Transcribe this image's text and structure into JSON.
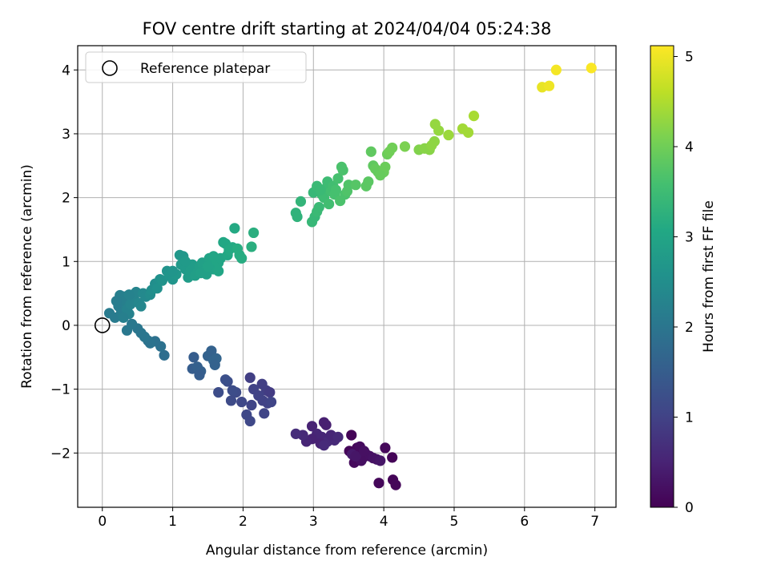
{
  "chart_data": {
    "type": "scatter",
    "title": "FOV centre drift starting at 2024/04/04 05:24:38",
    "xlabel": "Angular distance from reference (arcmin)",
    "ylabel": "Rotation from reference (arcmin)",
    "xlim": [
      -0.35,
      7.3
    ],
    "ylim": [
      -2.85,
      4.38
    ],
    "xticks": [
      0,
      1,
      2,
      3,
      4,
      5,
      6,
      7
    ],
    "yticks": [
      -2,
      -1,
      0,
      1,
      2,
      3,
      4
    ],
    "grid": true,
    "legend": {
      "position": "top-left",
      "label": "Reference platepar"
    },
    "reference_point": {
      "x": 0,
      "y": 0
    },
    "colorbar": {
      "label": "Hours from first FF file",
      "colormap": "viridis",
      "range": [
        0,
        5.12
      ],
      "ticks": [
        0,
        1,
        2,
        3,
        4,
        5
      ]
    },
    "points": [
      {
        "x": 3.54,
        "y": -1.72,
        "c": 0.05
      },
      {
        "x": 3.51,
        "y": -1.97,
        "c": 0.08
      },
      {
        "x": 3.62,
        "y": -1.92,
        "c": 0.1
      },
      {
        "x": 3.58,
        "y": -2.15,
        "c": 0.12
      },
      {
        "x": 3.66,
        "y": -1.9,
        "c": 0.15
      },
      {
        "x": 3.7,
        "y": -2.08,
        "c": 0.18
      },
      {
        "x": 3.75,
        "y": -2.02,
        "c": 0.2
      },
      {
        "x": 3.8,
        "y": -2.05,
        "c": 0.22
      },
      {
        "x": 3.85,
        "y": -2.08,
        "c": 0.25
      },
      {
        "x": 3.9,
        "y": -2.1,
        "c": 0.27
      },
      {
        "x": 3.95,
        "y": -2.12,
        "c": 0.3
      },
      {
        "x": 4.02,
        "y": -1.92,
        "c": 0.1
      },
      {
        "x": 4.12,
        "y": -2.07,
        "c": 0.05
      },
      {
        "x": 4.13,
        "y": -2.42,
        "c": 0.05
      },
      {
        "x": 4.17,
        "y": -2.5,
        "c": 0.07
      },
      {
        "x": 3.93,
        "y": -2.47,
        "c": 0.1
      },
      {
        "x": 3.68,
        "y": -2.12,
        "c": 0.2
      },
      {
        "x": 3.55,
        "y": -2.02,
        "c": 0.35
      },
      {
        "x": 3.6,
        "y": -2.05,
        "c": 0.3
      },
      {
        "x": 3.72,
        "y": -1.97,
        "c": 0.22
      },
      {
        "x": 3.15,
        "y": -1.52,
        "c": 0.45
      },
      {
        "x": 3.18,
        "y": -1.56,
        "c": 0.45
      },
      {
        "x": 2.98,
        "y": -1.58,
        "c": 0.5
      },
      {
        "x": 3.05,
        "y": -1.7,
        "c": 0.55
      },
      {
        "x": 3.12,
        "y": -1.75,
        "c": 0.55
      },
      {
        "x": 3.2,
        "y": -1.82,
        "c": 0.6
      },
      {
        "x": 3.3,
        "y": -1.8,
        "c": 0.6
      },
      {
        "x": 3.25,
        "y": -1.72,
        "c": 0.55
      },
      {
        "x": 3.1,
        "y": -1.85,
        "c": 0.5
      },
      {
        "x": 2.98,
        "y": -1.78,
        "c": 0.5
      },
      {
        "x": 2.9,
        "y": -1.82,
        "c": 0.55
      },
      {
        "x": 2.85,
        "y": -1.72,
        "c": 0.6
      },
      {
        "x": 2.75,
        "y": -1.7,
        "c": 0.65
      },
      {
        "x": 3.15,
        "y": -1.88,
        "c": 0.62
      },
      {
        "x": 3.35,
        "y": -1.75,
        "c": 0.6
      },
      {
        "x": 2.1,
        "y": -0.82,
        "c": 0.95
      },
      {
        "x": 2.27,
        "y": -0.92,
        "c": 0.95
      },
      {
        "x": 2.33,
        "y": -1.02,
        "c": 0.95
      },
      {
        "x": 2.38,
        "y": -1.05,
        "c": 0.9
      },
      {
        "x": 2.22,
        "y": -1.1,
        "c": 1.0
      },
      {
        "x": 2.15,
        "y": -1.0,
        "c": 1.0
      },
      {
        "x": 2.28,
        "y": -1.18,
        "c": 1.0
      },
      {
        "x": 2.35,
        "y": -1.22,
        "c": 1.0
      },
      {
        "x": 2.4,
        "y": -1.2,
        "c": 1.05
      },
      {
        "x": 2.3,
        "y": -1.38,
        "c": 1.05
      },
      {
        "x": 2.12,
        "y": -1.25,
        "c": 1.05
      },
      {
        "x": 2.05,
        "y": -1.4,
        "c": 1.1
      },
      {
        "x": 2.1,
        "y": -1.5,
        "c": 1.1
      },
      {
        "x": 1.98,
        "y": -1.2,
        "c": 1.1
      },
      {
        "x": 1.9,
        "y": -1.05,
        "c": 1.15
      },
      {
        "x": 1.85,
        "y": -1.02,
        "c": 1.2
      },
      {
        "x": 1.78,
        "y": -0.88,
        "c": 1.2
      },
      {
        "x": 1.75,
        "y": -0.85,
        "c": 1.25
      },
      {
        "x": 1.65,
        "y": -1.05,
        "c": 1.2
      },
      {
        "x": 1.83,
        "y": -1.18,
        "c": 1.15
      },
      {
        "x": 1.3,
        "y": -0.5,
        "c": 1.5
      },
      {
        "x": 1.28,
        "y": -0.68,
        "c": 1.5
      },
      {
        "x": 1.35,
        "y": -0.65,
        "c": 1.55
      },
      {
        "x": 1.4,
        "y": -0.72,
        "c": 1.55
      },
      {
        "x": 1.38,
        "y": -0.78,
        "c": 1.5
      },
      {
        "x": 1.5,
        "y": -0.48,
        "c": 1.6
      },
      {
        "x": 1.55,
        "y": -0.4,
        "c": 1.6
      },
      {
        "x": 1.58,
        "y": -0.55,
        "c": 1.65
      },
      {
        "x": 1.62,
        "y": -0.52,
        "c": 1.65
      },
      {
        "x": 1.6,
        "y": -0.62,
        "c": 1.6
      },
      {
        "x": 0.88,
        "y": -0.47,
        "c": 1.85
      },
      {
        "x": 0.83,
        "y": -0.33,
        "c": 1.9
      },
      {
        "x": 0.75,
        "y": -0.25,
        "c": 1.9
      },
      {
        "x": 0.68,
        "y": -0.28,
        "c": 1.95
      },
      {
        "x": 0.65,
        "y": -0.24,
        "c": 1.95
      },
      {
        "x": 0.6,
        "y": -0.18,
        "c": 2.0
      },
      {
        "x": 0.55,
        "y": -0.12,
        "c": 2.0
      },
      {
        "x": 0.5,
        "y": -0.05,
        "c": 2.0
      },
      {
        "x": 0.35,
        "y": -0.08,
        "c": 2.05
      },
      {
        "x": 0.42,
        "y": 0.02,
        "c": 2.05
      },
      {
        "x": 0.1,
        "y": 0.19,
        "c": 2.1
      },
      {
        "x": 0.18,
        "y": 0.12,
        "c": 2.1
      },
      {
        "x": 0.23,
        "y": 0.3,
        "c": 2.15
      },
      {
        "x": 0.27,
        "y": 0.2,
        "c": 2.15
      },
      {
        "x": 0.3,
        "y": 0.45,
        "c": 2.2
      },
      {
        "x": 0.25,
        "y": 0.47,
        "c": 2.2
      },
      {
        "x": 0.33,
        "y": 0.38,
        "c": 2.2
      },
      {
        "x": 0.35,
        "y": 0.25,
        "c": 2.25
      },
      {
        "x": 0.38,
        "y": 0.18,
        "c": 2.25
      },
      {
        "x": 0.4,
        "y": 0.33,
        "c": 2.3
      },
      {
        "x": 0.45,
        "y": 0.45,
        "c": 2.3
      },
      {
        "x": 0.48,
        "y": 0.52,
        "c": 2.3
      },
      {
        "x": 0.52,
        "y": 0.35,
        "c": 2.35
      },
      {
        "x": 0.55,
        "y": 0.3,
        "c": 2.35
      },
      {
        "x": 0.58,
        "y": 0.5,
        "c": 2.4
      },
      {
        "x": 0.62,
        "y": 0.45,
        "c": 2.4
      },
      {
        "x": 0.68,
        "y": 0.48,
        "c": 2.45
      },
      {
        "x": 0.3,
        "y": 0.12,
        "c": 2.2
      },
      {
        "x": 0.2,
        "y": 0.38,
        "c": 2.15
      },
      {
        "x": 0.38,
        "y": 0.48,
        "c": 2.25
      },
      {
        "x": 0.7,
        "y": 0.55,
        "c": 2.5
      },
      {
        "x": 0.75,
        "y": 0.65,
        "c": 2.5
      },
      {
        "x": 0.78,
        "y": 0.58,
        "c": 2.55
      },
      {
        "x": 0.82,
        "y": 0.72,
        "c": 2.55
      },
      {
        "x": 0.85,
        "y": 0.7,
        "c": 2.6
      },
      {
        "x": 0.92,
        "y": 0.85,
        "c": 2.6
      },
      {
        "x": 0.95,
        "y": 0.78,
        "c": 2.65
      },
      {
        "x": 1.0,
        "y": 0.72,
        "c": 2.65
      },
      {
        "x": 1.05,
        "y": 0.8,
        "c": 2.7
      },
      {
        "x": 1.1,
        "y": 1.1,
        "c": 2.7
      },
      {
        "x": 1.15,
        "y": 1.08,
        "c": 2.7
      },
      {
        "x": 1.12,
        "y": 0.95,
        "c": 2.75
      },
      {
        "x": 1.18,
        "y": 0.88,
        "c": 2.75
      },
      {
        "x": 1.22,
        "y": 0.75,
        "c": 2.8
      },
      {
        "x": 1.25,
        "y": 0.85,
        "c": 2.8
      },
      {
        "x": 1.28,
        "y": 0.95,
        "c": 2.8
      },
      {
        "x": 1.32,
        "y": 0.78,
        "c": 2.85
      },
      {
        "x": 1.35,
        "y": 0.82,
        "c": 2.85
      },
      {
        "x": 1.38,
        "y": 0.92,
        "c": 2.85
      },
      {
        "x": 1.42,
        "y": 0.98,
        "c": 2.9
      },
      {
        "x": 1.45,
        "y": 0.85,
        "c": 2.9
      },
      {
        "x": 1.48,
        "y": 0.8,
        "c": 2.9
      },
      {
        "x": 1.52,
        "y": 1.05,
        "c": 2.95
      },
      {
        "x": 1.55,
        "y": 0.95,
        "c": 2.95
      },
      {
        "x": 1.58,
        "y": 0.88,
        "c": 2.95
      },
      {
        "x": 1.62,
        "y": 1.0,
        "c": 3.0
      },
      {
        "x": 1.65,
        "y": 0.98,
        "c": 3.0
      },
      {
        "x": 1.68,
        "y": 1.05,
        "c": 3.0
      },
      {
        "x": 1.72,
        "y": 1.3,
        "c": 3.05
      },
      {
        "x": 1.75,
        "y": 1.28,
        "c": 3.05
      },
      {
        "x": 1.78,
        "y": 1.1,
        "c": 3.05
      },
      {
        "x": 1.8,
        "y": 1.18,
        "c": 3.1
      },
      {
        "x": 1.85,
        "y": 1.22,
        "c": 3.1
      },
      {
        "x": 1.88,
        "y": 1.52,
        "c": 3.1
      },
      {
        "x": 1.92,
        "y": 1.2,
        "c": 3.15
      },
      {
        "x": 1.95,
        "y": 1.1,
        "c": 3.15
      },
      {
        "x": 1.98,
        "y": 1.05,
        "c": 3.15
      },
      {
        "x": 2.15,
        "y": 1.45,
        "c": 3.2
      },
      {
        "x": 2.12,
        "y": 1.23,
        "c": 3.2
      },
      {
        "x": 1.0,
        "y": 0.85,
        "c": 2.65
      },
      {
        "x": 1.18,
        "y": 1.0,
        "c": 2.75
      },
      {
        "x": 1.4,
        "y": 0.82,
        "c": 2.9
      },
      {
        "x": 1.5,
        "y": 0.92,
        "c": 2.95
      },
      {
        "x": 1.58,
        "y": 1.08,
        "c": 3.0
      },
      {
        "x": 1.65,
        "y": 0.85,
        "c": 3.0
      },
      {
        "x": 2.75,
        "y": 1.76,
        "c": 3.3
      },
      {
        "x": 2.77,
        "y": 1.7,
        "c": 3.3
      },
      {
        "x": 2.82,
        "y": 1.94,
        "c": 3.35
      },
      {
        "x": 2.98,
        "y": 1.62,
        "c": 3.4
      },
      {
        "x": 3.02,
        "y": 1.7,
        "c": 3.4
      },
      {
        "x": 3.05,
        "y": 1.78,
        "c": 3.45
      },
      {
        "x": 3.08,
        "y": 1.85,
        "c": 3.45
      },
      {
        "x": 3.12,
        "y": 2.05,
        "c": 3.45
      },
      {
        "x": 3.15,
        "y": 2.0,
        "c": 3.5
      },
      {
        "x": 3.18,
        "y": 2.15,
        "c": 3.5
      },
      {
        "x": 3.2,
        "y": 2.25,
        "c": 3.5
      },
      {
        "x": 3.22,
        "y": 1.9,
        "c": 3.55
      },
      {
        "x": 3.25,
        "y": 2.1,
        "c": 3.55
      },
      {
        "x": 3.28,
        "y": 2.18,
        "c": 3.55
      },
      {
        "x": 3.3,
        "y": 2.05,
        "c": 3.6
      },
      {
        "x": 3.32,
        "y": 2.12,
        "c": 3.6
      },
      {
        "x": 3.35,
        "y": 2.3,
        "c": 3.6
      },
      {
        "x": 3.4,
        "y": 2.48,
        "c": 3.65
      },
      {
        "x": 3.42,
        "y": 2.43,
        "c": 3.65
      },
      {
        "x": 3.45,
        "y": 2.05,
        "c": 3.65
      },
      {
        "x": 3.48,
        "y": 2.1,
        "c": 3.7
      },
      {
        "x": 3.5,
        "y": 2.2,
        "c": 3.7
      },
      {
        "x": 3.38,
        "y": 1.95,
        "c": 3.65
      },
      {
        "x": 3.0,
        "y": 2.08,
        "c": 3.4
      },
      {
        "x": 3.05,
        "y": 2.18,
        "c": 3.45
      },
      {
        "x": 3.1,
        "y": 2.12,
        "c": 3.45
      },
      {
        "x": 3.6,
        "y": 2.2,
        "c": 3.75
      },
      {
        "x": 3.75,
        "y": 2.18,
        "c": 3.8
      },
      {
        "x": 3.78,
        "y": 2.25,
        "c": 3.8
      },
      {
        "x": 3.82,
        "y": 2.72,
        "c": 3.85
      },
      {
        "x": 3.85,
        "y": 2.5,
        "c": 3.85
      },
      {
        "x": 3.88,
        "y": 2.45,
        "c": 3.9
      },
      {
        "x": 3.92,
        "y": 2.4,
        "c": 3.9
      },
      {
        "x": 3.98,
        "y": 2.42,
        "c": 3.9
      },
      {
        "x": 4.02,
        "y": 2.48,
        "c": 3.95
      },
      {
        "x": 4.05,
        "y": 2.68,
        "c": 3.95
      },
      {
        "x": 4.08,
        "y": 2.72,
        "c": 4.0
      },
      {
        "x": 4.12,
        "y": 2.78,
        "c": 4.0
      },
      {
        "x": 4.0,
        "y": 2.4,
        "c": 3.95
      },
      {
        "x": 3.95,
        "y": 2.35,
        "c": 3.92
      },
      {
        "x": 4.3,
        "y": 2.8,
        "c": 4.1
      },
      {
        "x": 4.5,
        "y": 2.75,
        "c": 4.15
      },
      {
        "x": 4.58,
        "y": 2.77,
        "c": 4.2
      },
      {
        "x": 4.65,
        "y": 2.75,
        "c": 4.2
      },
      {
        "x": 4.68,
        "y": 2.82,
        "c": 4.25
      },
      {
        "x": 4.72,
        "y": 2.88,
        "c": 4.25
      },
      {
        "x": 4.73,
        "y": 3.15,
        "c": 4.3
      },
      {
        "x": 4.78,
        "y": 3.05,
        "c": 4.3
      },
      {
        "x": 4.92,
        "y": 2.98,
        "c": 4.35
      },
      {
        "x": 5.12,
        "y": 3.08,
        "c": 4.4
      },
      {
        "x": 5.2,
        "y": 3.02,
        "c": 4.4
      },
      {
        "x": 5.28,
        "y": 3.28,
        "c": 4.45
      },
      {
        "x": 6.25,
        "y": 3.73,
        "c": 4.95
      },
      {
        "x": 6.35,
        "y": 3.75,
        "c": 5.0
      },
      {
        "x": 6.45,
        "y": 4.0,
        "c": 5.05
      },
      {
        "x": 6.95,
        "y": 4.03,
        "c": 5.1
      }
    ]
  }
}
